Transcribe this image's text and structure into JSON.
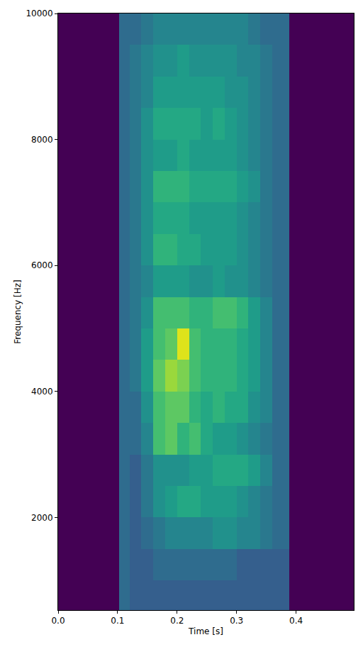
{
  "chart_data": {
    "type": "heatmap",
    "xlabel": "Time [s]",
    "ylabel": "Frequency [Hz]",
    "color": "viridis",
    "grid": false,
    "xlim": [
      0,
      0.497
    ],
    "ylim": [
      530,
      10000
    ],
    "xticks": [
      {
        "value": 0,
        "label": "0.0"
      },
      0.1,
      0.2,
      0.3,
      0.4
    ],
    "yticks": [
      2000,
      4000,
      6000,
      8000,
      10000
    ],
    "zlim": [
      0,
      10
    ],
    "x_bins": [
      0,
      0.103,
      0.12,
      0.14,
      0.16,
      0.18,
      0.2,
      0.22,
      0.24,
      0.26,
      0.28,
      0.3,
      0.32,
      0.34,
      0.36,
      0.388,
      0.497
    ],
    "y_bins": [
      530,
      1000,
      1500,
      2000,
      2500,
      3000,
      3500,
      4000,
      4500,
      5000,
      5500,
      6000,
      6500,
      7000,
      7500,
      8000,
      8500,
      9000,
      9500,
      10000
    ],
    "cells": [
      [
        0,
        3.5,
        3,
        3,
        3,
        3,
        3,
        3,
        3,
        3,
        3,
        3,
        3,
        3,
        3,
        0
      ],
      [
        0,
        3.5,
        3,
        3,
        3.5,
        3.5,
        3.5,
        3.5,
        3.5,
        3.5,
        3.5,
        3,
        3,
        3,
        3,
        0
      ],
      [
        0,
        3.5,
        3,
        3.5,
        4,
        4.5,
        4.5,
        4.5,
        4.5,
        5,
        5,
        4.5,
        4.5,
        4,
        3.5,
        0
      ],
      [
        0,
        3.5,
        3,
        4,
        5,
        5.5,
        6,
        6,
        5.5,
        5.5,
        5.5,
        5,
        4.5,
        4,
        3.5,
        0
      ],
      [
        0,
        3.5,
        3,
        4,
        5,
        5,
        5,
        5.5,
        5.5,
        6,
        6,
        6,
        5.5,
        4.5,
        3.5,
        0
      ],
      [
        0,
        3.5,
        3.5,
        4.5,
        7,
        7.5,
        6.5,
        7,
        6,
        5.5,
        5.5,
        5,
        4.5,
        4,
        3.5,
        0
      ],
      [
        0,
        3.5,
        3.5,
        5,
        7,
        7.5,
        7.5,
        6.5,
        6,
        6.5,
        6,
        6,
        5,
        4.5,
        3.5,
        0
      ],
      [
        0,
        3.5,
        4,
        5.5,
        7.5,
        8.5,
        8,
        7,
        6.5,
        6.5,
        6.5,
        6,
        5.5,
        4.5,
        3.5,
        0
      ],
      [
        0,
        3.5,
        4,
        5.5,
        7,
        7.5,
        9.5,
        7,
        6.5,
        6.5,
        6.5,
        6,
        5.5,
        4.5,
        3.5,
        0
      ],
      [
        0,
        3.5,
        4,
        5,
        7,
        7,
        7,
        6.5,
        6.5,
        7,
        7,
        6.5,
        5.5,
        4.5,
        3.5,
        0
      ],
      [
        0,
        3.5,
        4,
        4.5,
        5.5,
        5.5,
        5.5,
        5,
        5,
        5.5,
        5,
        5,
        4.5,
        4,
        3.5,
        0
      ],
      [
        0,
        3.5,
        4,
        5,
        6.5,
        6.5,
        6,
        6,
        5.5,
        5.5,
        5.5,
        5,
        4.5,
        4,
        3.5,
        0
      ],
      [
        0,
        3.5,
        4,
        5,
        6,
        6,
        6,
        5.5,
        5.5,
        5.5,
        5.5,
        5,
        4.5,
        4,
        3.5,
        0
      ],
      [
        0,
        3.5,
        4,
        5,
        6.5,
        6.5,
        6.5,
        6,
        6,
        6,
        6,
        5.5,
        5,
        4,
        3.5,
        0
      ],
      [
        0,
        3.5,
        4,
        5,
        5.5,
        5.5,
        6,
        5.5,
        5.5,
        5.5,
        5.5,
        5,
        4.5,
        4,
        3.5,
        0
      ],
      [
        0,
        3.5,
        4,
        5,
        6,
        6,
        6,
        6,
        5.5,
        6,
        5.5,
        5,
        4.5,
        4,
        3.5,
        0
      ],
      [
        0,
        3.5,
        4,
        4.5,
        5.5,
        5.5,
        5.5,
        5.5,
        5.5,
        5.5,
        5,
        5,
        4.5,
        4,
        3.5,
        0
      ],
      [
        0,
        3.5,
        4,
        4.5,
        5,
        5,
        5.5,
        5,
        5,
        5,
        5,
        4.5,
        4.5,
        4,
        3.5,
        0
      ],
      [
        0,
        3.5,
        3.5,
        4,
        4.5,
        4.5,
        4.5,
        4.5,
        4.5,
        4.5,
        4.5,
        4.5,
        4,
        3.5,
        3.5,
        0
      ]
    ]
  }
}
